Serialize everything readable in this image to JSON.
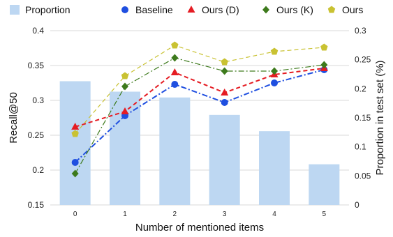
{
  "chart_data": {
    "type": "bar+line",
    "categories": [
      "0",
      "1",
      "2",
      "3",
      "4",
      "5"
    ],
    "xlabel": "Number of mentioned items",
    "ylabel": "Recall@50",
    "ylabel_right": "Proportion in test set (%)",
    "ylim": [
      0.15,
      0.4
    ],
    "ylim_right": [
      0,
      0.3
    ],
    "yticks": [
      "0.15",
      "0.2",
      "0.25",
      "0.3",
      "0.35",
      "0.4"
    ],
    "yticks_right": [
      "0",
      "0.05",
      "0.1",
      "0.15",
      "0.2",
      "0.25",
      "0.3"
    ],
    "bars": {
      "name": "Proportion",
      "axis": "right",
      "color": "#bdd7f2",
      "values": [
        0.213,
        0.195,
        0.185,
        0.155,
        0.127,
        0.07
      ]
    },
    "series": [
      {
        "name": "Baseline",
        "color": "#1f4fe0",
        "marker": "circle",
        "dash": "dashdot",
        "values": [
          0.211,
          0.278,
          0.323,
          0.297,
          0.325,
          0.344
        ]
      },
      {
        "name": "Ours (D)",
        "color": "#e51c23",
        "marker": "triangle",
        "dash": "dash",
        "values": [
          0.262,
          0.284,
          0.34,
          0.311,
          0.337,
          0.346
        ]
      },
      {
        "name": "Ours (K)",
        "color": "#3d7a1c",
        "marker": "diamond",
        "dash": "dashdot",
        "values": [
          0.195,
          0.32,
          0.361,
          0.342,
          0.342,
          0.351
        ]
      },
      {
        "name": "Ours",
        "color": "#c9c232",
        "marker": "pentagon",
        "dash": "dash",
        "values": [
          0.252,
          0.335,
          0.379,
          0.355,
          0.37,
          0.376
        ]
      }
    ],
    "legend": "top"
  }
}
